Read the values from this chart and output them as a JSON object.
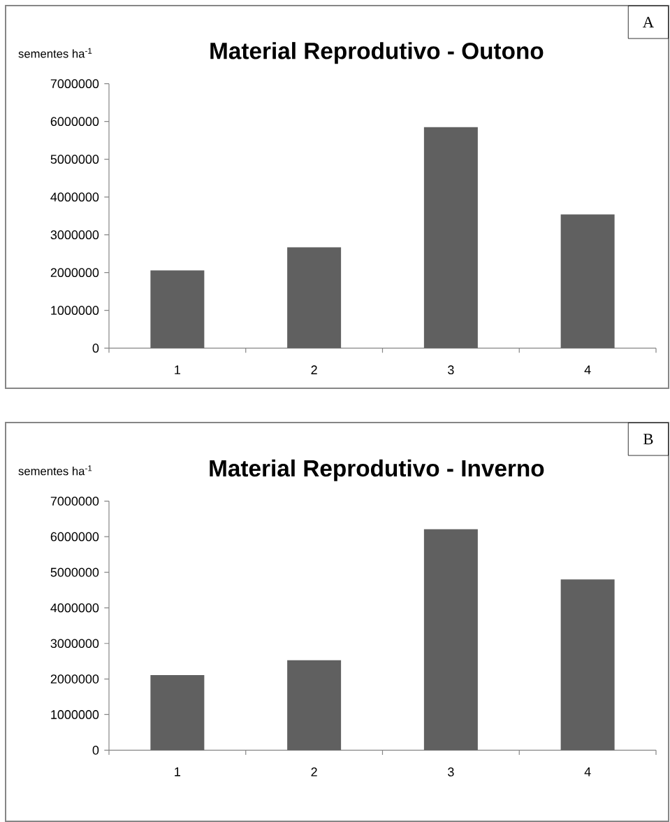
{
  "chart_data": [
    {
      "type": "bar",
      "title": "Material Reprodutivo - Outono",
      "ylabel": "sementes ha$^{-1}$",
      "categories": [
        "1",
        "2",
        "3",
        "4"
      ],
      "values": [
        2060000,
        2670000,
        5850000,
        3540000
      ],
      "color": "#606060",
      "ylim": [
        0,
        7000000
      ],
      "yticks": [
        0,
        1000000,
        2000000,
        3000000,
        4000000,
        5000000,
        6000000,
        7000000
      ],
      "annotations": [
        "A"
      ]
    },
    {
      "type": "bar",
      "title": "Material Reprodutivo - Inverno",
      "ylabel": "sementes ha$^{-1}$",
      "categories": [
        "1",
        "2",
        "3",
        "4"
      ],
      "values": [
        2110000,
        2530000,
        6210000,
        4800000
      ],
      "color": "#606060",
      "ylim": [
        0,
        7000000
      ],
      "yticks": [
        0,
        1000000,
        2000000,
        3000000,
        4000000,
        5000000,
        6000000,
        7000000
      ],
      "annotations": [
        "B"
      ]
    }
  ]
}
